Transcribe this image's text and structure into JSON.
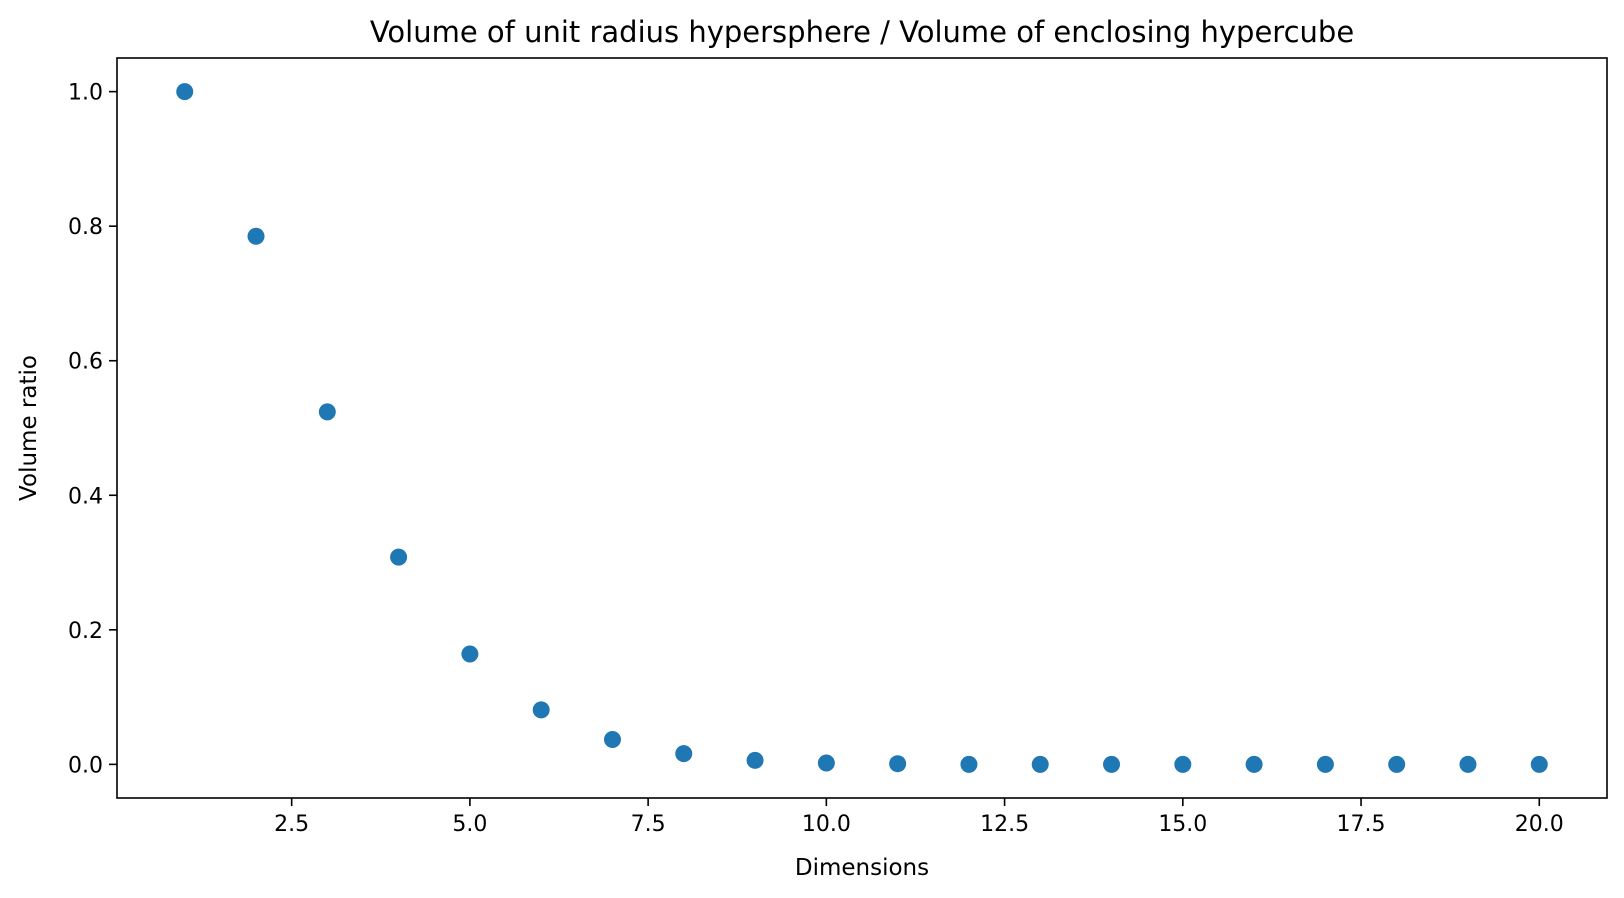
{
  "chart_data": {
    "type": "scatter",
    "title": "Volume of unit radius hypersphere / Volume of enclosing hypercube",
    "xlabel": "Dimensions",
    "ylabel": "Volume ratio",
    "xlim": [
      0.05,
      20.95
    ],
    "ylim": [
      -0.05,
      1.05
    ],
    "grid": false,
    "point_color": "#1f77b4",
    "x_ticks": [
      {
        "value": 2.5,
        "label": "2.5"
      },
      {
        "value": 5.0,
        "label": "5.0"
      },
      {
        "value": 7.5,
        "label": "7.5"
      },
      {
        "value": 10.0,
        "label": "10.0"
      },
      {
        "value": 12.5,
        "label": "12.5"
      },
      {
        "value": 15.0,
        "label": "15.0"
      },
      {
        "value": 17.5,
        "label": "17.5"
      },
      {
        "value": 20.0,
        "label": "20.0"
      }
    ],
    "y_ticks": [
      {
        "value": 0.0,
        "label": "0.0"
      },
      {
        "value": 0.2,
        "label": "0.2"
      },
      {
        "value": 0.4,
        "label": "0.4"
      },
      {
        "value": 0.6,
        "label": "0.6"
      },
      {
        "value": 0.8,
        "label": "0.8"
      },
      {
        "value": 1.0,
        "label": "1.0"
      }
    ],
    "x": [
      1,
      2,
      3,
      4,
      5,
      6,
      7,
      8,
      9,
      10,
      11,
      12,
      13,
      14,
      15,
      16,
      17,
      18,
      19,
      20
    ],
    "y": [
      1.0,
      0.785,
      0.524,
      0.308,
      0.164,
      0.081,
      0.037,
      0.016,
      0.006,
      0.002,
      0.001,
      0.0,
      0.0,
      0.0,
      0.0,
      0.0,
      0.0,
      0.0,
      0.0,
      0.0
    ]
  }
}
